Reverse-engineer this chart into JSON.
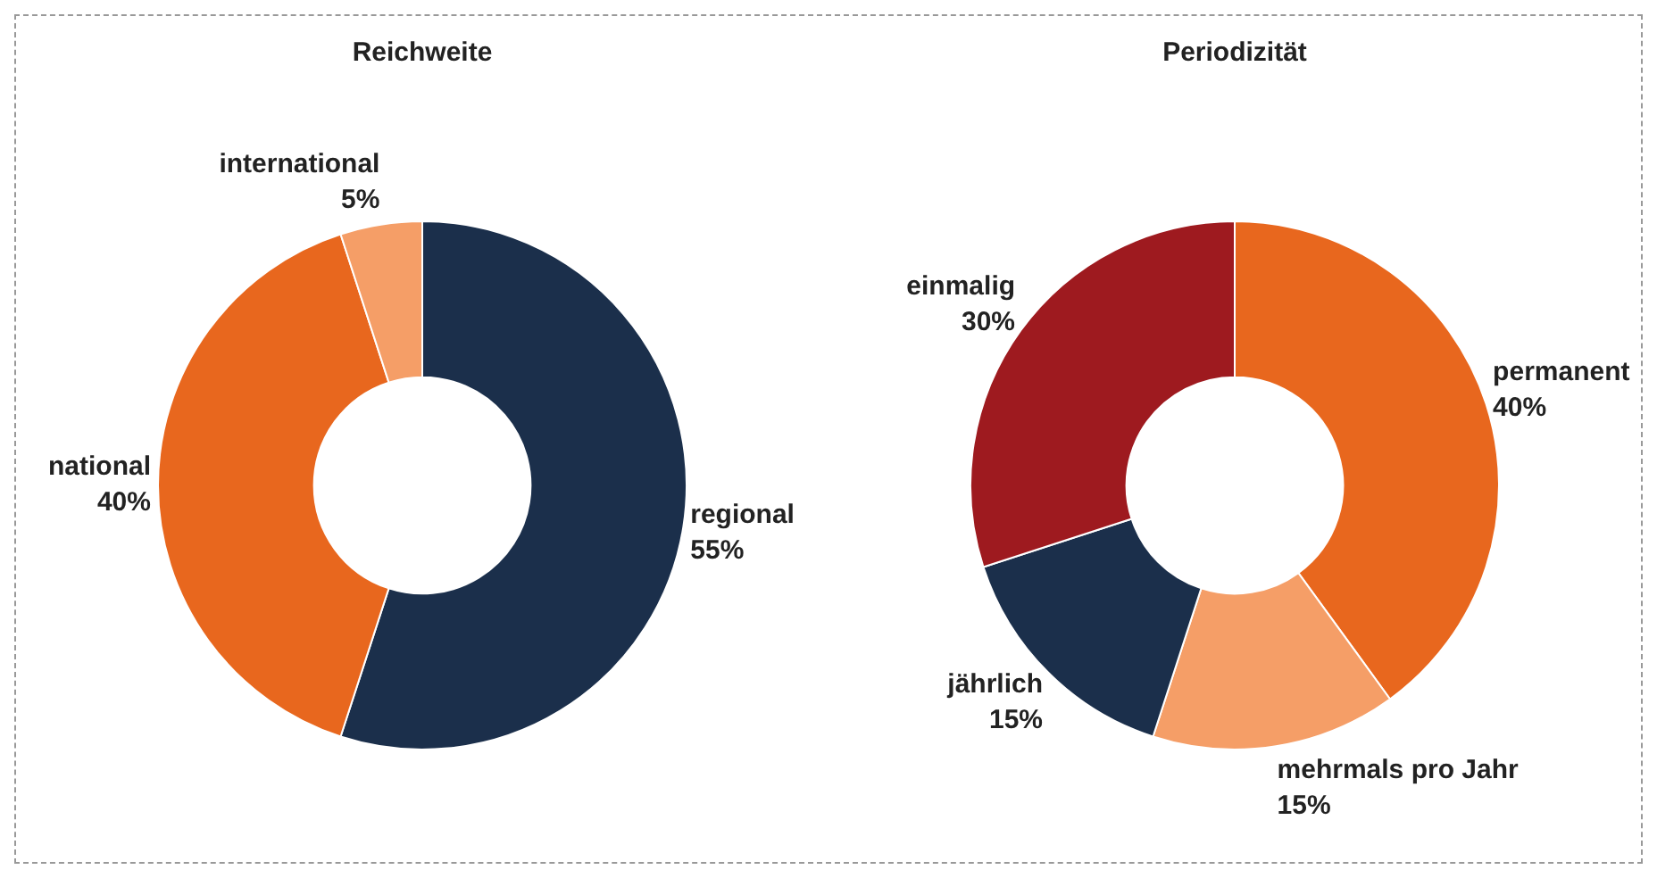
{
  "chart_data": [
    {
      "type": "donut",
      "title": "Reichweite",
      "categories": [
        "regional",
        "national",
        "international"
      ],
      "values": [
        55,
        40,
        5
      ],
      "value_labels": [
        "55%",
        "40%",
        "5%"
      ],
      "colors": [
        "#1b2f4b",
        "#e8671e",
        "#f59e67"
      ]
    },
    {
      "type": "donut",
      "title": "Periodizität",
      "categories": [
        "permanent",
        "mehrmals pro Jahr",
        "jährlich",
        "einmalig"
      ],
      "values": [
        40,
        15,
        15,
        30
      ],
      "value_labels": [
        "40%",
        "15%",
        "15%",
        "30%"
      ],
      "colors": [
        "#e8671e",
        "#f59e67",
        "#1b2f4b",
        "#9e1a1f"
      ]
    }
  ]
}
